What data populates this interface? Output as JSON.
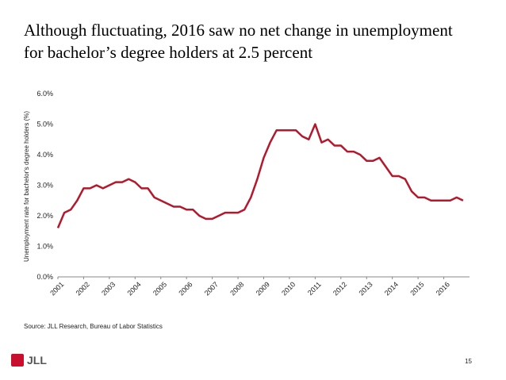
{
  "chart_data": {
    "type": "line",
    "title": "Although fluctuating, 2016 saw no net change in unemployment for bachelor’s degree holders at 2.5 percent",
    "y_label": "Unemployment rate for bachelor's degree holders (%)",
    "source": "Source: JLL Research, Bureau of Labor Statistics",
    "page_number": "15",
    "logo": "JLL",
    "x": [
      2001,
      2001.25,
      2001.5,
      2001.75,
      2002,
      2002.25,
      2002.5,
      2002.75,
      2003,
      2003.25,
      2003.5,
      2003.75,
      2004,
      2004.25,
      2004.5,
      2004.75,
      2005,
      2005.25,
      2005.5,
      2005.75,
      2006,
      2006.25,
      2006.5,
      2006.75,
      2007,
      2007.25,
      2007.5,
      2007.75,
      2008,
      2008.25,
      2008.5,
      2008.75,
      2009,
      2009.25,
      2009.5,
      2009.75,
      2010,
      2010.25,
      2010.5,
      2010.75,
      2011,
      2011.25,
      2011.5,
      2011.75,
      2012,
      2012.25,
      2012.5,
      2012.75,
      2013,
      2013.25,
      2013.5,
      2013.75,
      2014,
      2014.25,
      2014.5,
      2014.75,
      2015,
      2015.25,
      2015.5,
      2015.75,
      2016,
      2016.25,
      2016.5,
      2016.75
    ],
    "series": [
      {
        "name": "Unemployment rate",
        "color": "#b5172b",
        "values": [
          1.6,
          2.1,
          2.2,
          2.5,
          2.9,
          2.9,
          3.0,
          2.9,
          3.0,
          3.1,
          3.1,
          3.2,
          3.1,
          2.9,
          2.9,
          2.6,
          2.5,
          2.4,
          2.3,
          2.3,
          2.2,
          2.2,
          2.0,
          1.9,
          1.9,
          2.0,
          2.1,
          2.1,
          2.1,
          2.2,
          2.6,
          3.2,
          3.9,
          4.4,
          4.8,
          4.8,
          4.8,
          4.8,
          4.6,
          4.5,
          5.0,
          4.4,
          4.5,
          4.3,
          4.3,
          4.1,
          4.1,
          4.0,
          3.8,
          3.8,
          3.9,
          3.6,
          3.3,
          3.3,
          3.2,
          2.8,
          2.6,
          2.6,
          2.5,
          2.5,
          2.5,
          2.5,
          2.6,
          2.5
        ]
      }
    ],
    "xlim": [
      2001,
      2017
    ],
    "xticks": [
      2001,
      2002,
      2003,
      2004,
      2005,
      2006,
      2007,
      2008,
      2009,
      2010,
      2011,
      2012,
      2013,
      2014,
      2015,
      2016
    ],
    "ylim": [
      0,
      6
    ],
    "yticks": [
      {
        "value": 0,
        "label": "0.0%"
      },
      {
        "value": 1,
        "label": "1.0%"
      },
      {
        "value": 2,
        "label": "2.0%"
      },
      {
        "value": 3,
        "label": "3.0%"
      },
      {
        "value": 4,
        "label": "4.0%"
      },
      {
        "value": 5,
        "label": "5.0%"
      },
      {
        "value": 6,
        "label": "6.0%"
      }
    ],
    "grid": false
  }
}
